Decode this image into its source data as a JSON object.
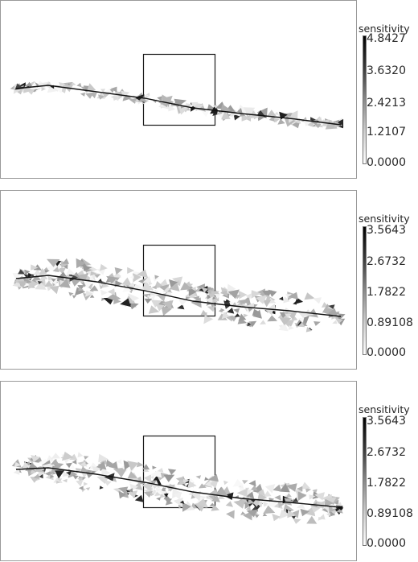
{
  "panels": [
    {
      "colorbar": {
        "title": "sensitivity",
        "ticks": [
          "4.8427",
          "3.6320",
          "2.4213",
          "1.2107",
          "0.0000"
        ]
      },
      "band": "narrow"
    },
    {
      "colorbar": {
        "title": "sensitivity",
        "ticks": [
          "3.5643",
          "2.6732",
          "1.7822",
          "0.89108",
          "0.0000"
        ]
      },
      "band": "wide"
    },
    {
      "colorbar": {
        "title": "sensitivity",
        "ticks": [
          "3.5643",
          "2.6732",
          "1.7822",
          "0.89108",
          "0.0000"
        ]
      },
      "band": "wide"
    }
  ]
}
